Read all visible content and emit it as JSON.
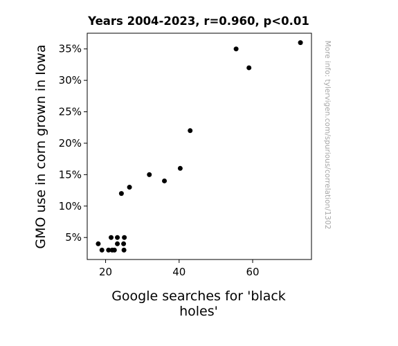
{
  "chart_data": {
    "type": "scatter",
    "title": "Years 2004-2023, r=0.960, p<0.01",
    "xlabel_lines": [
      "Google searches for 'black",
      "holes'"
    ],
    "ylabel": "GMO use in corn grown in Iowa",
    "side_note": "More info: tylervigen.com/spurious/correlation/1302",
    "xlim": [
      15,
      76
    ],
    "ylim": [
      1.5,
      37.5
    ],
    "x_ticks": [
      20,
      40,
      60
    ],
    "y_ticks": [
      5,
      10,
      15,
      20,
      25,
      30,
      35
    ],
    "y_tick_suffix": "%",
    "marker_color": "#000000",
    "points": [
      {
        "x": 18.0,
        "y": 4
      },
      {
        "x": 19.0,
        "y": 3
      },
      {
        "x": 20.8,
        "y": 3
      },
      {
        "x": 21.5,
        "y": 5
      },
      {
        "x": 21.8,
        "y": 3
      },
      {
        "x": 22.4,
        "y": 3
      },
      {
        "x": 23.2,
        "y": 4
      },
      {
        "x": 23.2,
        "y": 5
      },
      {
        "x": 24.3,
        "y": 12
      },
      {
        "x": 24.9,
        "y": 4
      },
      {
        "x": 25.0,
        "y": 3
      },
      {
        "x": 25.1,
        "y": 5
      },
      {
        "x": 26.5,
        "y": 13
      },
      {
        "x": 31.9,
        "y": 15
      },
      {
        "x": 36.0,
        "y": 14
      },
      {
        "x": 40.3,
        "y": 16
      },
      {
        "x": 43.0,
        "y": 22
      },
      {
        "x": 55.5,
        "y": 35
      },
      {
        "x": 59.0,
        "y": 32
      },
      {
        "x": 73.0,
        "y": 36
      }
    ]
  }
}
